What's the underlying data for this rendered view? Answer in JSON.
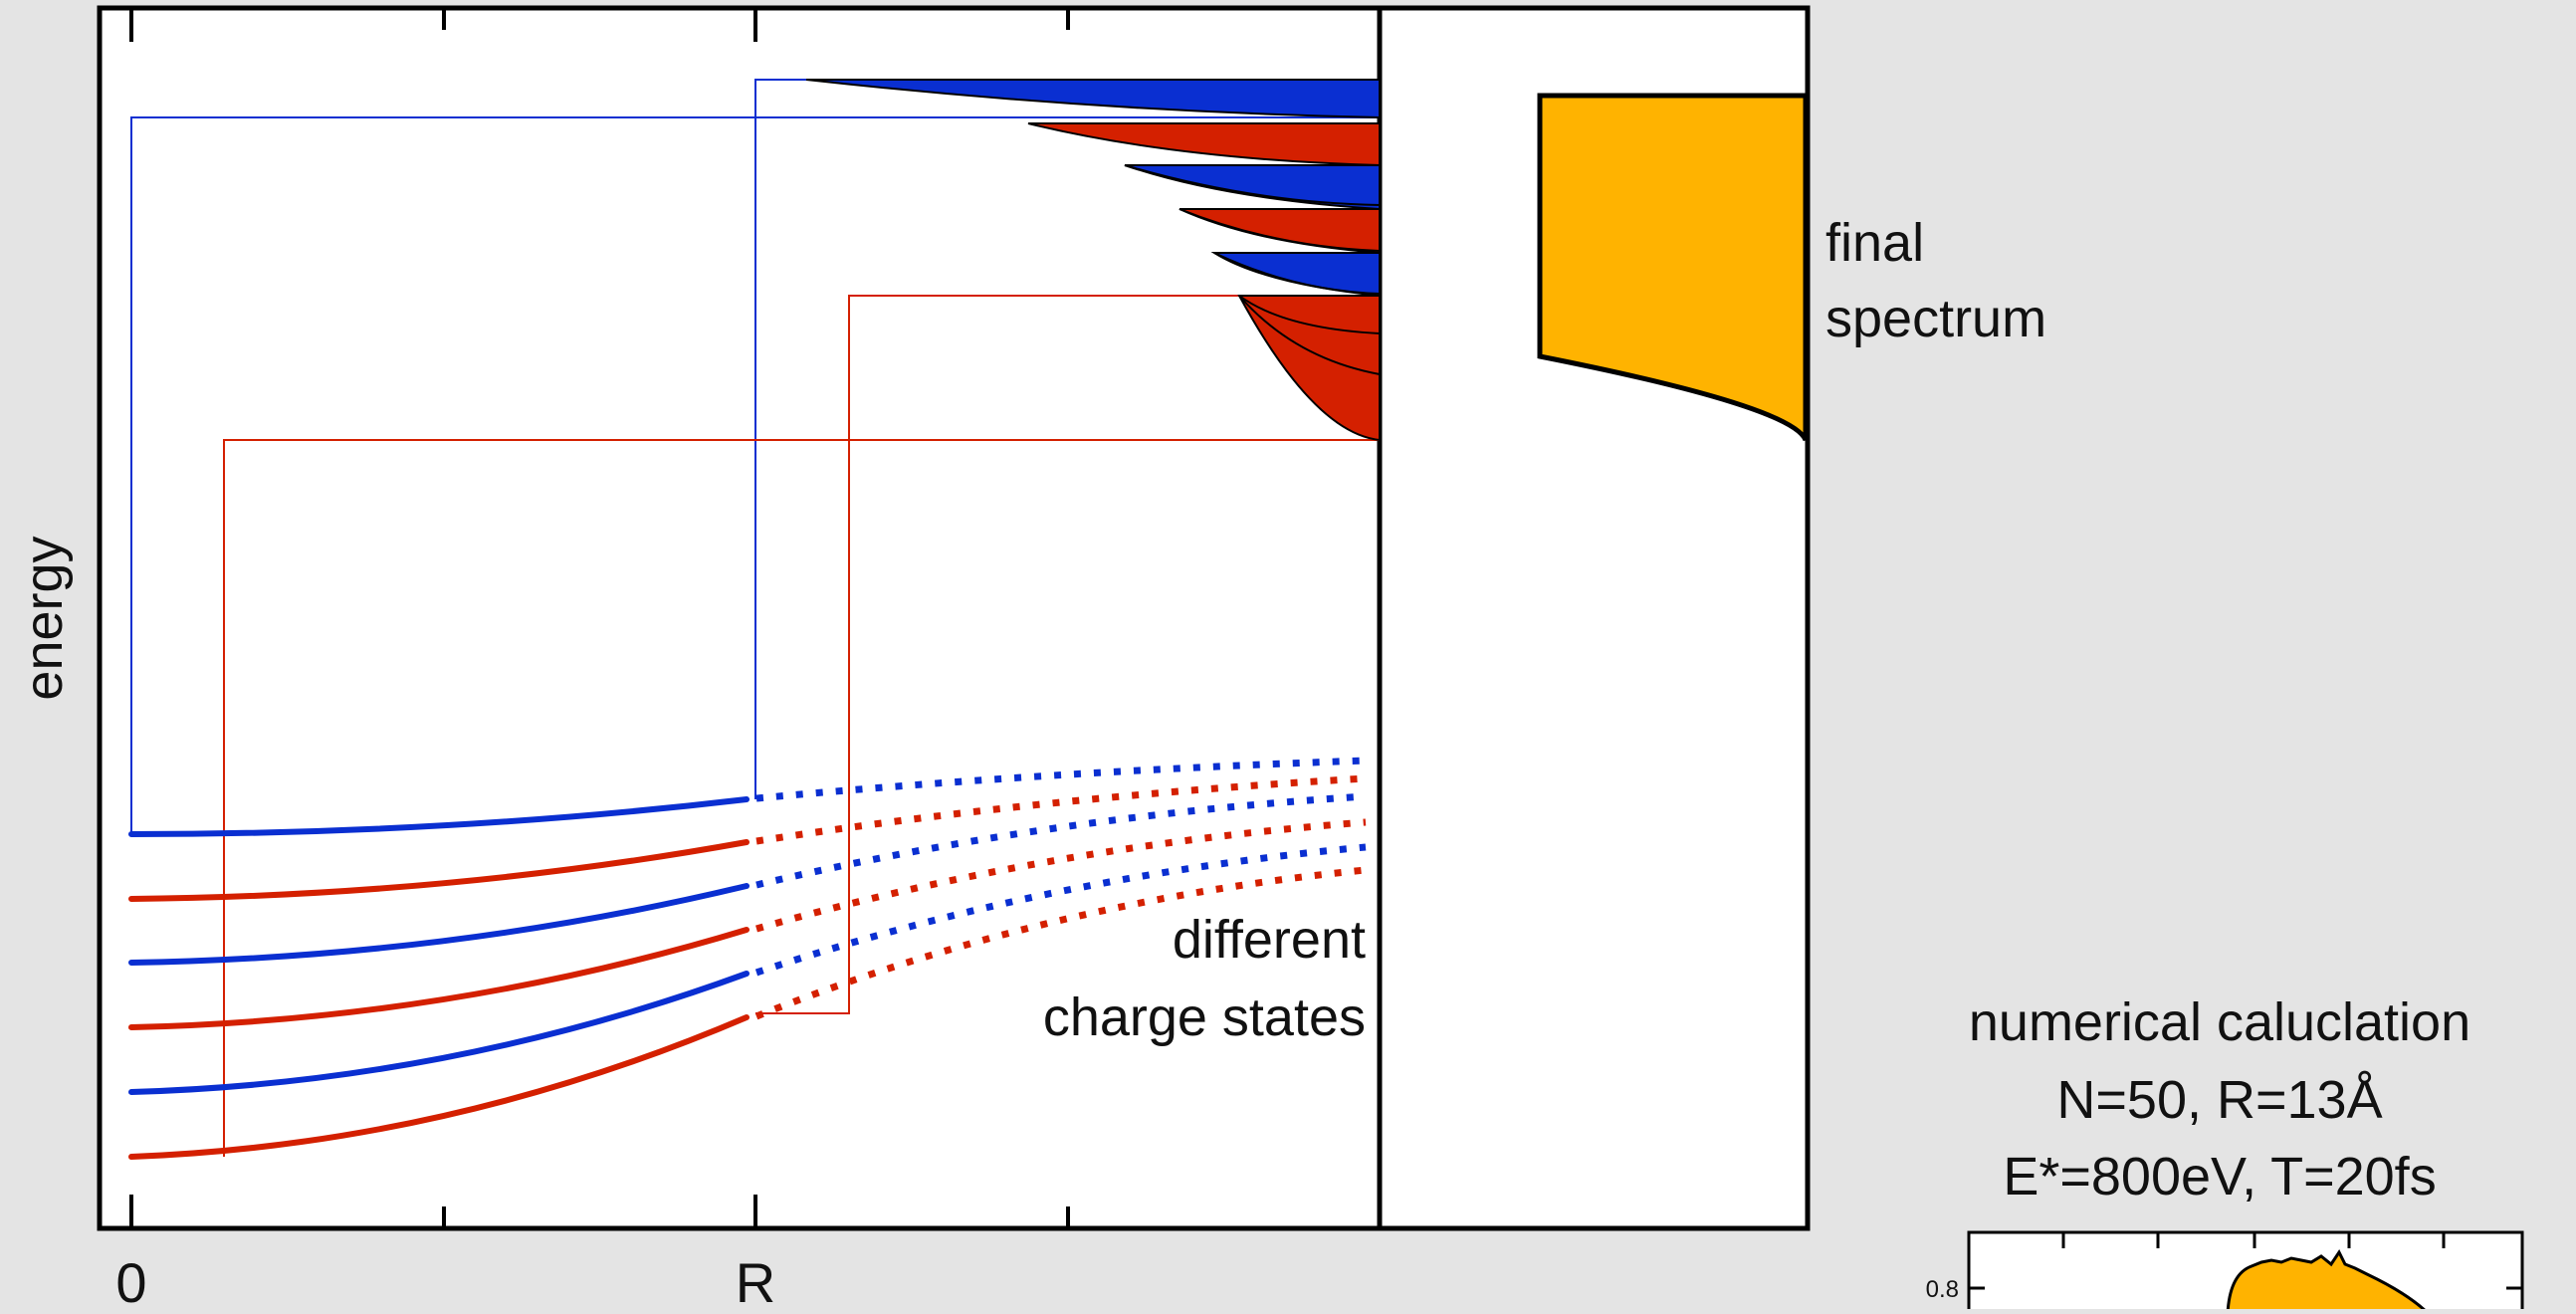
{
  "y_axis_label": "energy",
  "x_tick_labels": [
    "0",
    "R"
  ],
  "annotations": {
    "charge_states": [
      "different",
      "charge states"
    ],
    "final_spectrum": [
      "final",
      "spectrum"
    ]
  },
  "inset": {
    "title_lines": [
      "numerical caluclation",
      "N=50, R=13Å",
      "E*=800eV, T=20fs"
    ],
    "y_tick_label": "0.8"
  },
  "colors": {
    "blue": "#0a2fd1",
    "red": "#d42000",
    "orange": "#ffb300",
    "background": "#e4e4e4"
  }
}
